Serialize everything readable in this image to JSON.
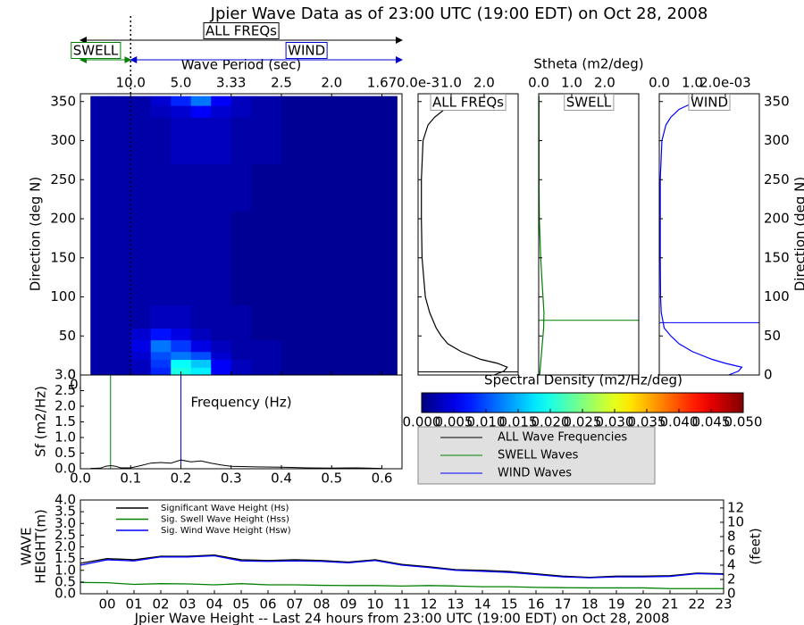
{
  "chart_data": [
    {
      "type": "heatmap",
      "title": "Jpier Wave Data as of 23:00 UTC (19:00 EDT) on Oct 28, 2008",
      "xlabel": "Frequency (Hz)",
      "ylabel": "Direction (deg N)",
      "x2label": "Wave Period (sec)",
      "x_edges": [
        0.02,
        0.06,
        0.1,
        0.14,
        0.18,
        0.22,
        0.26,
        0.3,
        0.34,
        0.4,
        0.5,
        0.63
      ],
      "y_edges": [
        0,
        10,
        20,
        30,
        45,
        60,
        90,
        150,
        210,
        270,
        330,
        345,
        357
      ],
      "z": [
        [
          0.002,
          0.002,
          0.003,
          0.008,
          0.02,
          0.018,
          0.006,
          0.003,
          0.002,
          0.001,
          0.001
        ],
        [
          0.002,
          0.002,
          0.003,
          0.009,
          0.019,
          0.016,
          0.006,
          0.003,
          0.002,
          0.001,
          0.001
        ],
        [
          0.002,
          0.002,
          0.004,
          0.01,
          0.012,
          0.01,
          0.004,
          0.002,
          0.002,
          0.001,
          0.001
        ],
        [
          0.002,
          0.002,
          0.005,
          0.012,
          0.009,
          0.005,
          0.003,
          0.002,
          0.002,
          0.001,
          0.001
        ],
        [
          0.002,
          0.002,
          0.004,
          0.007,
          0.005,
          0.003,
          0.002,
          0.002,
          0.001,
          0.001,
          0.001
        ],
        [
          0.002,
          0.002,
          0.002,
          0.003,
          0.003,
          0.002,
          0.002,
          0.002,
          0.001,
          0.001,
          0.001
        ],
        [
          0.002,
          0.002,
          0.002,
          0.002,
          0.002,
          0.002,
          0.002,
          0.001,
          0.001,
          0.001,
          0.001
        ],
        [
          0.002,
          0.002,
          0.002,
          0.002,
          0.002,
          0.002,
          0.002,
          0.001,
          0.001,
          0.001,
          0.001
        ],
        [
          0.002,
          0.002,
          0.002,
          0.002,
          0.002,
          0.002,
          0.002,
          0.002,
          0.001,
          0.001,
          0.001
        ],
        [
          0.002,
          0.002,
          0.002,
          0.002,
          0.003,
          0.003,
          0.003,
          0.002,
          0.002,
          0.001,
          0.001
        ],
        [
          0.002,
          0.002,
          0.002,
          0.003,
          0.004,
          0.006,
          0.004,
          0.003,
          0.002,
          0.001,
          0.001
        ],
        [
          0.002,
          0.002,
          0.002,
          0.004,
          0.008,
          0.012,
          0.006,
          0.003,
          0.002,
          0.001,
          0.001
        ]
      ],
      "xlim": [
        0,
        0.64
      ],
      "ylim": [
        0,
        360
      ],
      "xticks": [
        {
          "value": 0,
          "label": "0.0"
        },
        0.1,
        0.2,
        0.3,
        0.4,
        0.5,
        0.6
      ],
      "yticks": [
        0,
        50,
        100,
        150,
        200,
        250,
        300,
        350
      ],
      "x2ticks": [
        {
          "value": 0.1,
          "label": "10.0"
        },
        {
          "value": 0.2,
          "label": "5.0"
        },
        {
          "value": 0.3,
          "label": "3.33"
        },
        {
          "value": 0.4,
          "label": "2.5"
        },
        {
          "value": 0.5,
          "label": "2.0"
        },
        {
          "value": 0.6,
          "label": "1.67"
        }
      ],
      "colormap": "jet",
      "clim": [
        0,
        0.05
      ],
      "colorbar_label": "Spectral Density (m2/Hz/deg)",
      "colorbar_ticks": [
        {
          "value": 0,
          "label": "0.000"
        },
        {
          "value": 0.005,
          "label": "0.005"
        },
        {
          "value": 0.01,
          "label": "0.010"
        },
        {
          "value": 0.015,
          "label": "0.015"
        },
        {
          "value": 0.02,
          "label": "0.020"
        },
        {
          "value": 0.025,
          "label": "0.025"
        },
        {
          "value": 0.03,
          "label": "0.030"
        },
        {
          "value": 0.035,
          "label": "0.035"
        },
        {
          "value": 0.04,
          "label": "0.040"
        },
        {
          "value": 0.045,
          "label": "0.045"
        },
        {
          "value": 0.05,
          "label": "0.050"
        }
      ],
      "separation_frequency": 0.1,
      "annotations": {
        "all": "ALL FREQs",
        "swell": "SWELL",
        "wind": "WIND"
      },
      "annotation_colors": {
        "all": "#000000",
        "swell": "#008000",
        "wind": "#0000cc"
      }
    },
    {
      "type": "profile",
      "xlabel": "Stheta (m2/deg)",
      "ylabel": "Direction (deg N)",
      "y": [
        0,
        5,
        10,
        15,
        20,
        30,
        40,
        50,
        60,
        80,
        100,
        150,
        200,
        250,
        300,
        320,
        330,
        340,
        350,
        357
      ],
      "ylim": [
        0,
        360
      ],
      "yticks": [
        0,
        50,
        100,
        150,
        200,
        250,
        300,
        350
      ],
      "panels": [
        {
          "title": "ALL FREQs",
          "color": "#000000",
          "mean_direction": 4,
          "xlim": [
            0,
            3.03
          ],
          "xticks": [
            {
              "value": 0,
              "label": "0.0e-3"
            },
            {
              "value": 1,
              "label": "1.0"
            },
            {
              "value": 2,
              "label": "2.0"
            }
          ],
          "values": [
            2.3,
            2.6,
            2.7,
            2.4,
            1.9,
            1.3,
            0.9,
            0.7,
            0.55,
            0.35,
            0.22,
            0.12,
            0.1,
            0.1,
            0.15,
            0.3,
            0.5,
            0.8,
            1.3,
            1.8
          ]
        },
        {
          "title": "SWELL",
          "color": "#008000",
          "mean_direction": 70,
          "xlim": [
            0,
            3.03
          ],
          "xticks": [
            {
              "value": 0,
              "label": "0.0"
            },
            {
              "value": 1,
              "label": "1.0"
            },
            {
              "value": 2,
              "label": "2.0"
            }
          ],
          "values": [
            0.03,
            0.04,
            0.05,
            0.06,
            0.07,
            0.09,
            0.11,
            0.13,
            0.15,
            0.16,
            0.13,
            0.06,
            0.02,
            0.01,
            0.01,
            0.01,
            0.01,
            0.01,
            0.01,
            0.01
          ]
        },
        {
          "title": "WIND",
          "color": "#0000ff",
          "mean_direction": 67,
          "xlim": [
            0,
            3.03
          ],
          "xticks": [
            {
              "value": 0,
              "label": "0.0"
            },
            {
              "value": 1,
              "label": "1.0"
            },
            {
              "value": 2,
              "label": "2.0e-03"
            }
          ],
          "values": [
            2.1,
            2.4,
            2.5,
            2.0,
            1.6,
            1.0,
            0.6,
            0.35,
            0.15,
            0.06,
            0.04,
            0.03,
            0.03,
            0.03,
            0.08,
            0.2,
            0.35,
            0.6,
            1.1,
            1.6
          ]
        }
      ]
    },
    {
      "type": "line",
      "ylabel": "Sf (m2/Hz)",
      "color": "#000000",
      "x": [
        0.02,
        0.04,
        0.05,
        0.06,
        0.07,
        0.08,
        0.1,
        0.12,
        0.14,
        0.16,
        0.18,
        0.2,
        0.22,
        0.24,
        0.26,
        0.28,
        0.3,
        0.35,
        0.4,
        0.45,
        0.5,
        0.55,
        0.6
      ],
      "values": [
        0.01,
        0.02,
        0.08,
        0.1,
        0.08,
        0.03,
        0.03,
        0.1,
        0.18,
        0.2,
        0.18,
        0.28,
        0.22,
        0.25,
        0.18,
        0.12,
        0.08,
        0.06,
        0.05,
        0.03,
        0.02,
        0.03,
        0.01
      ],
      "xlim": [
        0,
        0.64
      ],
      "ylim": [
        0,
        3.0
      ],
      "xticks": [
        {
          "value": 0,
          "label": "0.0"
        },
        0.1,
        0.2,
        0.3,
        0.4,
        0.5,
        0.6
      ],
      "yticks": [
        {
          "value": 0,
          "label": "0.0"
        },
        0.5,
        {
          "value": 1,
          "label": "1.0"
        },
        1.5,
        {
          "value": 2,
          "label": "2.0"
        },
        2.5,
        {
          "value": 3,
          "label": "3.0"
        }
      ],
      "peak_lines": [
        {
          "color": "#008000",
          "value": 0.06
        },
        {
          "color": "#0000ff",
          "value": 0.2
        }
      ],
      "legend": [
        {
          "name": "ALL Wave Frequencies",
          "color": "#000000"
        },
        {
          "name": "SWELL Waves",
          "color": "#008000"
        },
        {
          "name": "WIND Waves",
          "color": "#0000ff"
        }
      ]
    },
    {
      "type": "line",
      "xlabel": "Jpier Wave Height -- Last 24 hours from 23:00 UTC (19:00 EDT) on Oct 28, 2008",
      "ylabel": [
        "WAVE",
        "HEIGHT(m)"
      ],
      "y2label": "(feet)",
      "x": [
        -1,
        0,
        1,
        2,
        3,
        4,
        5,
        6,
        7,
        8,
        9,
        10,
        11,
        12,
        13,
        14,
        15,
        16,
        17,
        18,
        19,
        20,
        21,
        22,
        23
      ],
      "xlim": [
        -1,
        23
      ],
      "xticks": [
        {
          "value": 0,
          "label": "00"
        },
        {
          "value": 1,
          "label": "01"
        },
        {
          "value": 2,
          "label": "02"
        },
        {
          "value": 3,
          "label": "03"
        },
        {
          "value": 4,
          "label": "04"
        },
        {
          "value": 5,
          "label": "05"
        },
        {
          "value": 6,
          "label": "06"
        },
        {
          "value": 7,
          "label": "07"
        },
        {
          "value": 8,
          "label": "08"
        },
        {
          "value": 9,
          "label": "09"
        },
        10,
        11,
        12,
        13,
        14,
        15,
        16,
        17,
        18,
        19,
        20,
        21,
        22,
        23
      ],
      "ylim": [
        0,
        4.0
      ],
      "yticks": [
        {
          "value": 0,
          "label": "0.0"
        },
        0.5,
        {
          "value": 1,
          "label": "1.0"
        },
        1.5,
        {
          "value": 2,
          "label": "2.0"
        },
        2.5,
        {
          "value": 3,
          "label": "3.0"
        },
        3.5,
        {
          "value": 4,
          "label": "4.0"
        }
      ],
      "y2lim": [
        0,
        13.12
      ],
      "y2ticks": [
        0,
        2,
        4,
        6,
        8,
        10,
        12
      ],
      "series": [
        {
          "name": "Significant Wave Height (Hs)",
          "color": "#000000",
          "values": [
            1.3,
            1.5,
            1.45,
            1.6,
            1.6,
            1.65,
            1.45,
            1.42,
            1.45,
            1.42,
            1.35,
            1.45,
            1.25,
            1.15,
            1.03,
            1.0,
            0.95,
            0.85,
            0.75,
            0.7,
            0.75,
            0.75,
            0.77,
            0.88,
            0.85
          ]
        },
        {
          "name": "Sig. Swell Wave Height (Hss)",
          "color": "#008000",
          "values": [
            0.48,
            0.47,
            0.4,
            0.43,
            0.42,
            0.38,
            0.43,
            0.38,
            0.38,
            0.36,
            0.35,
            0.35,
            0.33,
            0.35,
            0.33,
            0.3,
            0.3,
            0.27,
            0.26,
            0.25,
            0.25,
            0.25,
            0.22,
            0.22,
            0.22
          ]
        },
        {
          "name": "Sig. Wind Wave Height (Hsw)",
          "color": "#0000ff",
          "values": [
            1.22,
            1.45,
            1.4,
            1.57,
            1.57,
            1.62,
            1.4,
            1.38,
            1.4,
            1.38,
            1.32,
            1.42,
            1.22,
            1.12,
            1.0,
            0.96,
            0.91,
            0.82,
            0.72,
            0.68,
            0.72,
            0.72,
            0.74,
            0.86,
            0.83
          ]
        }
      ]
    }
  ]
}
